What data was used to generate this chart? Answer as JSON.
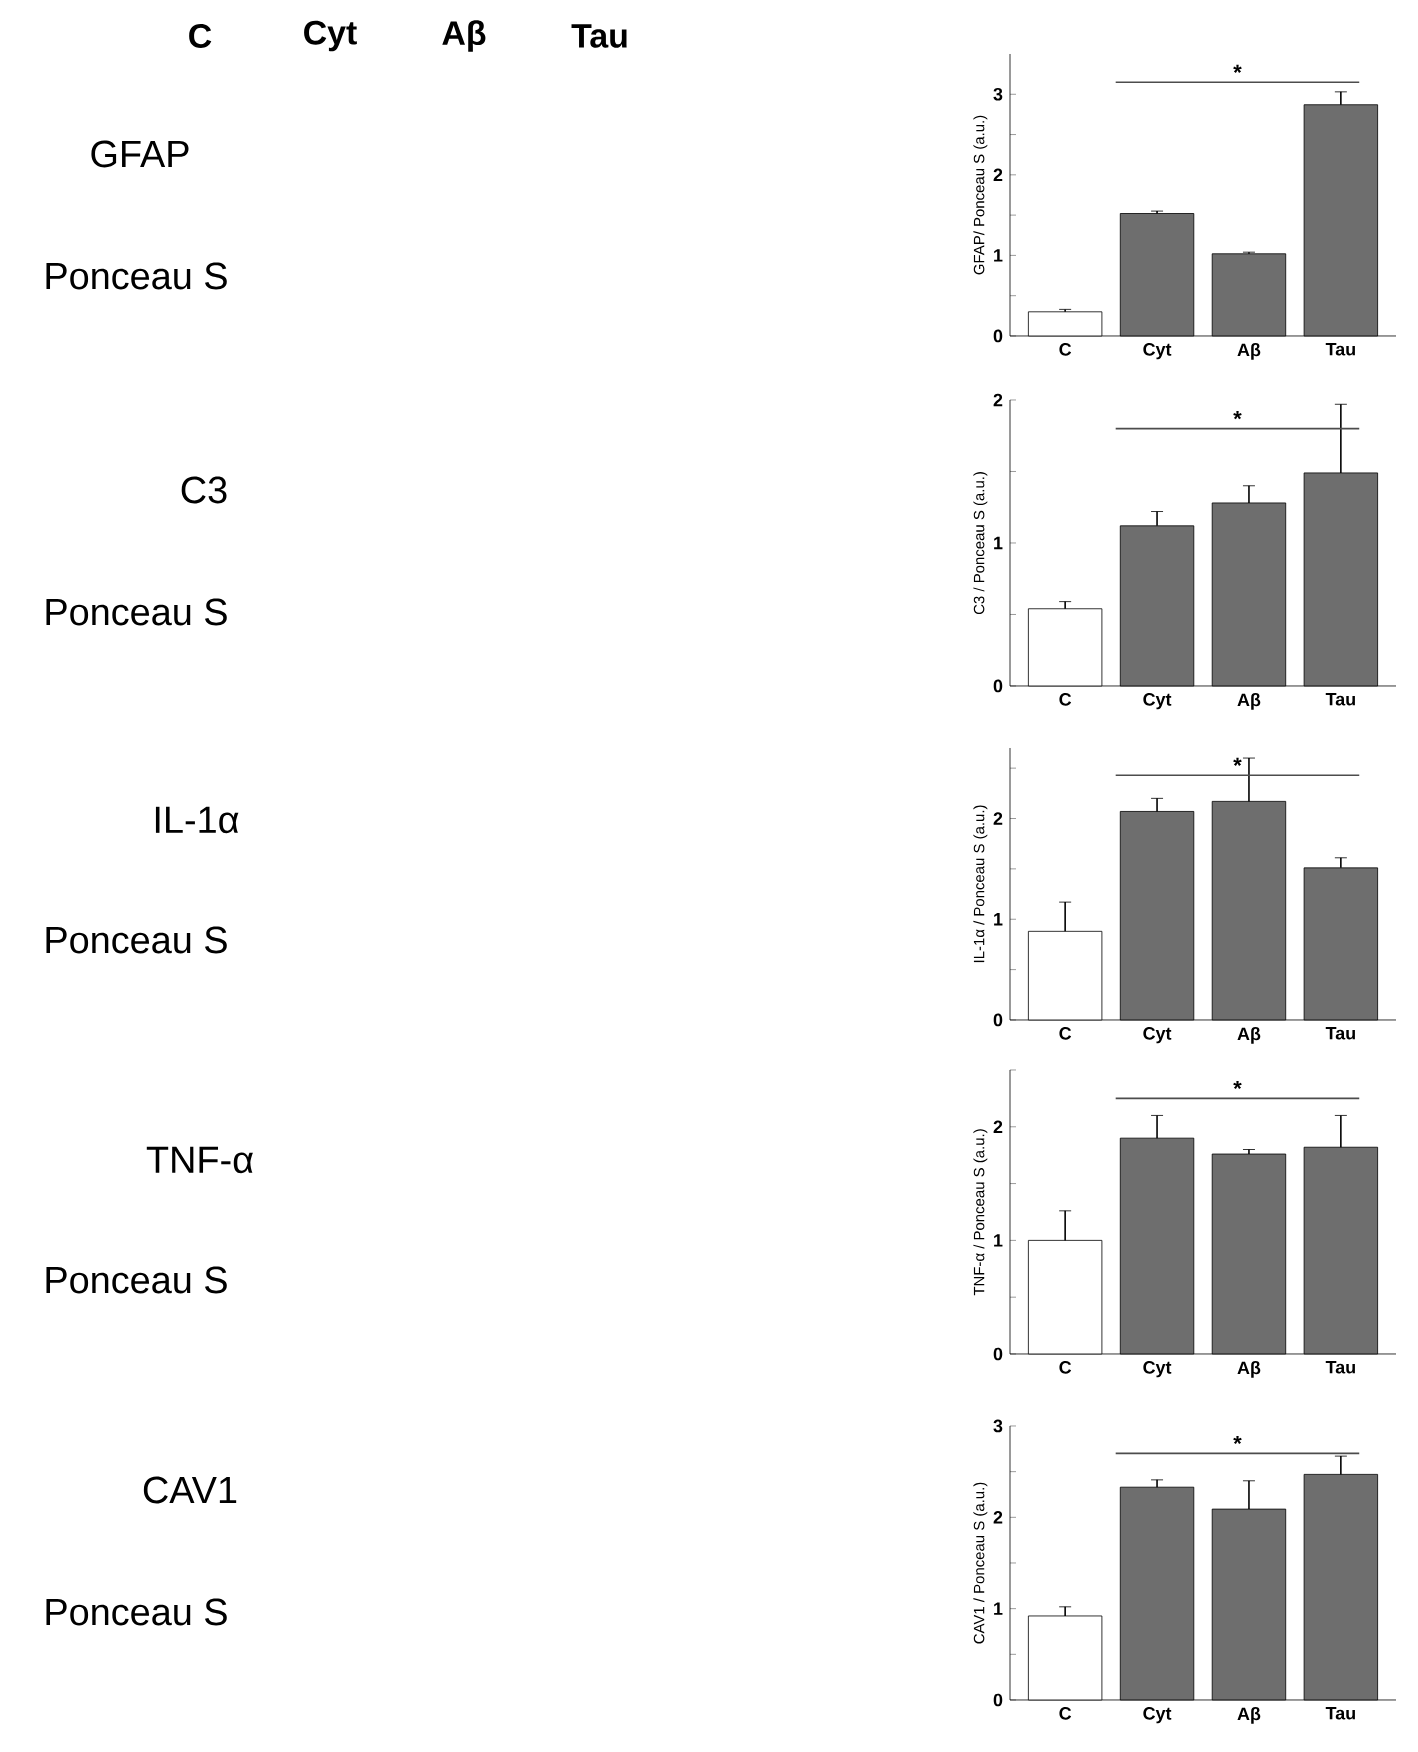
{
  "chart_data": [
    {
      "type": "other",
      "annotations": [
        "C",
        "Cyt",
        "Aβ",
        "Tau",
        "GFAP",
        "Ponceau S",
        "C3",
        "Ponceau S",
        "IL-1α",
        "Ponceau S",
        "TNF-α",
        "Ponceau S",
        "CAV1",
        "Ponceau S"
      ]
    },
    {
      "type": "bar",
      "ylabel": "GFAP/ Ponceau S (a.u.)",
      "categories": [
        "C",
        "Cyt",
        "Aβ",
        "Tau"
      ],
      "values": [
        0.3,
        1.52,
        1.02,
        2.87
      ],
      "errors": [
        0.03,
        0.03,
        0.02,
        0.16
      ],
      "colors": [
        "#ffffff",
        "#6e6e6e",
        "#6e6e6e",
        "#6e6e6e"
      ],
      "ylim": [
        0,
        3.5
      ],
      "yticks": [
        0,
        {
          "value": 0.5,
          "label": null
        },
        1,
        {
          "value": 1.5,
          "label": null
        },
        2,
        {
          "value": 2.5,
          "label": null
        },
        3
      ],
      "annotations": [
        "*"
      ]
    },
    {
      "type": "bar",
      "ylabel": "C3 / Ponceau S (a.u.)",
      "categories": [
        "C",
        "Cyt",
        "Aβ",
        "Tau"
      ],
      "values": [
        0.54,
        1.12,
        1.28,
        1.49
      ],
      "errors": [
        0.05,
        0.1,
        0.12,
        0.48
      ],
      "colors": [
        "#ffffff",
        "#6e6e6e",
        "#6e6e6e",
        "#6e6e6e"
      ],
      "ylim": [
        0,
        2
      ],
      "yticks": [
        0,
        {
          "value": 0.5,
          "label": null
        },
        1,
        {
          "value": 1.5,
          "label": null
        },
        2
      ],
      "annotations": [
        "*"
      ]
    },
    {
      "type": "bar",
      "ylabel": "IL-1α / Ponceau S (a.u.)",
      "categories": [
        "C",
        "Cyt",
        "Aβ",
        "Tau"
      ],
      "values": [
        0.88,
        2.07,
        2.17,
        1.51
      ],
      "errors": [
        0.29,
        0.13,
        0.43,
        0.1
      ],
      "colors": [
        "#ffffff",
        "#6e6e6e",
        "#6e6e6e",
        "#6e6e6e"
      ],
      "ylim": [
        0,
        2.7
      ],
      "yticks": [
        0,
        {
          "value": 0.5,
          "label": null
        },
        1,
        {
          "value": 1.5,
          "label": null
        },
        2,
        {
          "value": 2.5,
          "label": null
        }
      ],
      "annotations": [
        "*"
      ]
    },
    {
      "type": "bar",
      "ylabel": "TNF-α / Ponceau S (a.u.)",
      "categories": [
        "C",
        "Cyt",
        "Aβ",
        "Tau"
      ],
      "values": [
        1.0,
        1.9,
        1.76,
        1.82
      ],
      "errors": [
        0.26,
        0.2,
        0.04,
        0.28
      ],
      "colors": [
        "#ffffff",
        "#6e6e6e",
        "#6e6e6e",
        "#6e6e6e"
      ],
      "ylim": [
        0,
        2.5
      ],
      "yticks": [
        0,
        {
          "value": 0.5,
          "label": null
        },
        1,
        {
          "value": 1.5,
          "label": null
        },
        2,
        {
          "value": 2.5,
          "label": null
        }
      ],
      "annotations": [
        "*"
      ]
    },
    {
      "type": "bar",
      "ylabel": "CAV1 / Ponceau S (a.u.)",
      "categories": [
        "C",
        "Cyt",
        "Aβ",
        "Tau"
      ],
      "values": [
        0.92,
        2.33,
        2.09,
        2.47
      ],
      "errors": [
        0.1,
        0.08,
        0.31,
        0.2
      ],
      "colors": [
        "#ffffff",
        "#6e6e6e",
        "#6e6e6e",
        "#6e6e6e"
      ],
      "ylim": [
        0,
        3
      ],
      "yticks": [
        0,
        {
          "value": 0.5,
          "label": null
        },
        1,
        {
          "value": 1.5,
          "label": null
        },
        2,
        {
          "value": 2.5,
          "label": null
        },
        3
      ],
      "annotations": [
        "*"
      ]
    }
  ]
}
